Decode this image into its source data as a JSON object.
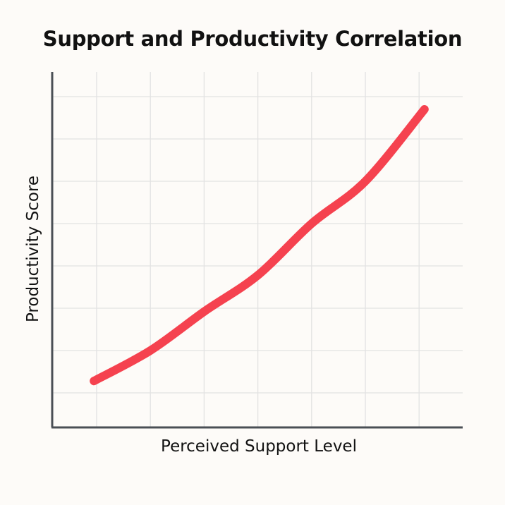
{
  "chart_data": {
    "type": "line",
    "title": "Support and Productivity Correlation",
    "xlabel": "Perceived Support Level",
    "ylabel": "Productivity Score",
    "x_tick_labels": [],
    "y_tick_labels": [],
    "grid": true,
    "legend": null,
    "xlim": [
      0,
      7.7
    ],
    "ylim": [
      0,
      8.5
    ],
    "series": [
      {
        "name": "Productivity Score",
        "color": "#F5424F",
        "x": [
          0.95,
          2,
          3,
          4,
          5,
          6,
          7.1
        ],
        "y": [
          1.28,
          2,
          2.92,
          3.78,
          5,
          6,
          7.7
        ]
      }
    ]
  },
  "colors": {
    "background": "#FDFBF8",
    "axis": "#4A4F55",
    "grid": "#E2E2E2",
    "line": "#F5424F"
  }
}
